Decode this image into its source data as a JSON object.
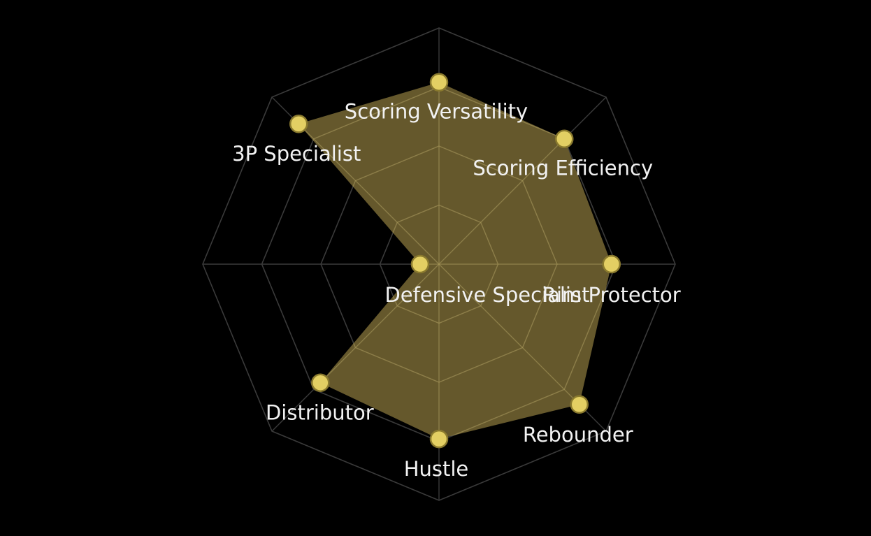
{
  "chart_data": {
    "type": "radar",
    "title": "",
    "axes": [
      "Scoring Versatility",
      "Scoring Efficiency",
      "Rim Protector",
      "Rebounder",
      "Hustle",
      "Distributor",
      "Defensive Specialist",
      "3P Specialist"
    ],
    "values": [
      0.77,
      0.75,
      0.73,
      0.84,
      0.74,
      0.71,
      0.08,
      0.84
    ],
    "range": [
      0,
      1
    ],
    "grid_levels": 4,
    "grid": true,
    "legend": "none"
  },
  "colors": {
    "background": "#000000",
    "fill": "#8c7a3d",
    "point": "#e3cf63",
    "grid": "#3a3a3a",
    "label": "#f2f2f2"
  }
}
